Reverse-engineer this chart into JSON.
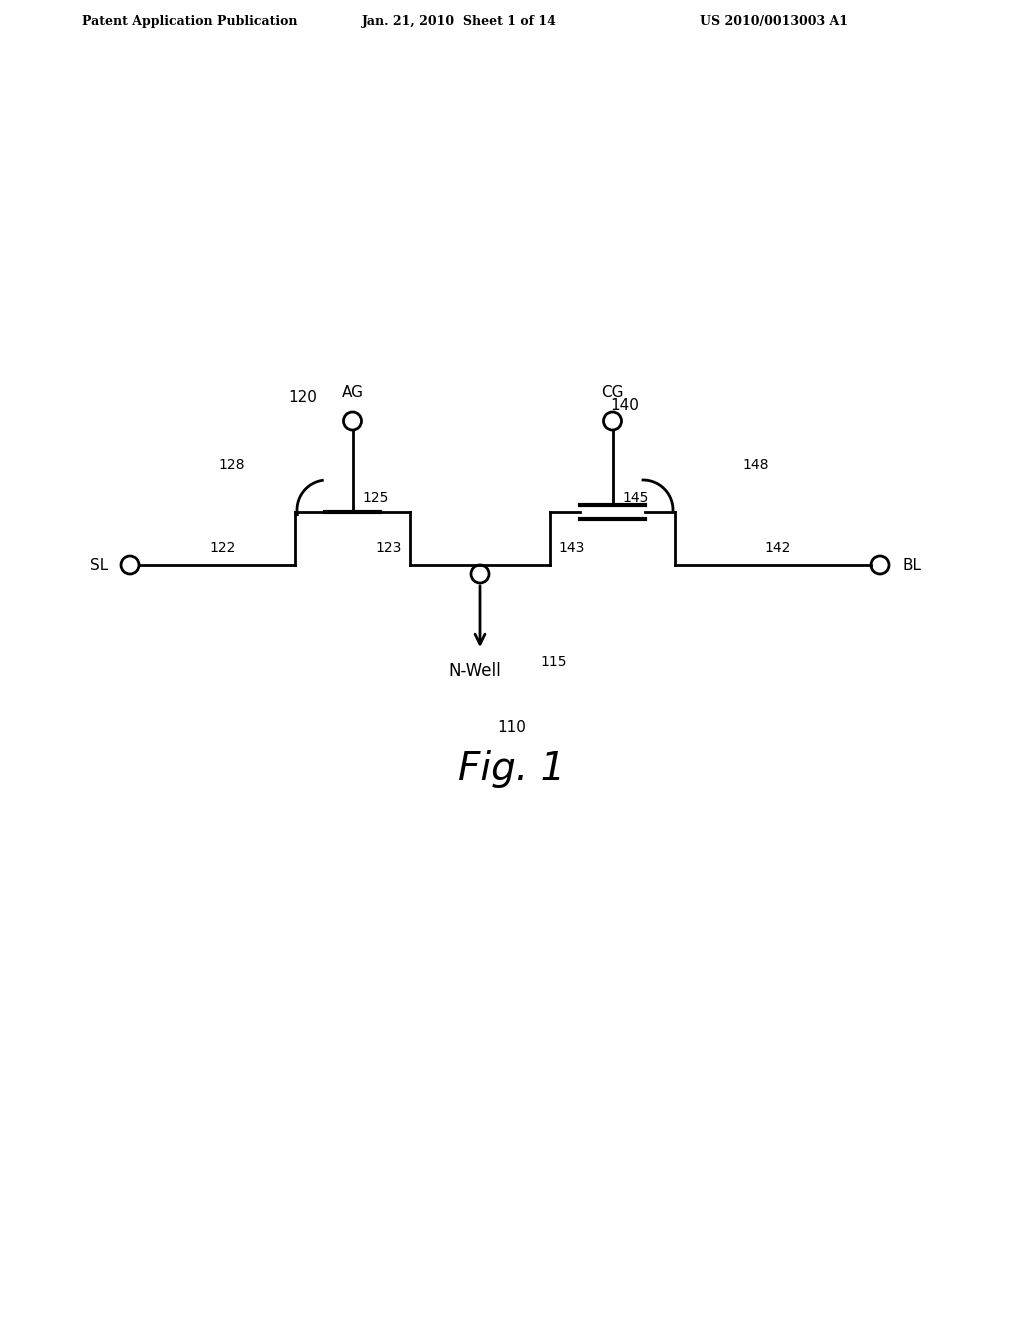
{
  "background_color": "#ffffff",
  "header_left": "Patent Application Publication",
  "header_mid": "Jan. 21, 2010  Sheet 1 of 14",
  "header_right": "US 2010/0013003 A1",
  "fig_label": "Fig. 1",
  "fig_number": "110",
  "label_115": "115",
  "label_120": "120",
  "label_140": "140",
  "label_122": "122",
  "label_123": "123",
  "label_125": "125",
  "label_128": "128",
  "label_142": "142",
  "label_143": "143",
  "label_145": "145",
  "label_148": "148",
  "label_AG": "AG",
  "label_CG": "CG",
  "label_SL": "SL",
  "label_BL": "BL",
  "label_NWell": "N-Well",
  "line_color": "#000000",
  "line_width": 2.0,
  "lw_thick": 3.0,
  "circle_r": 0.09
}
